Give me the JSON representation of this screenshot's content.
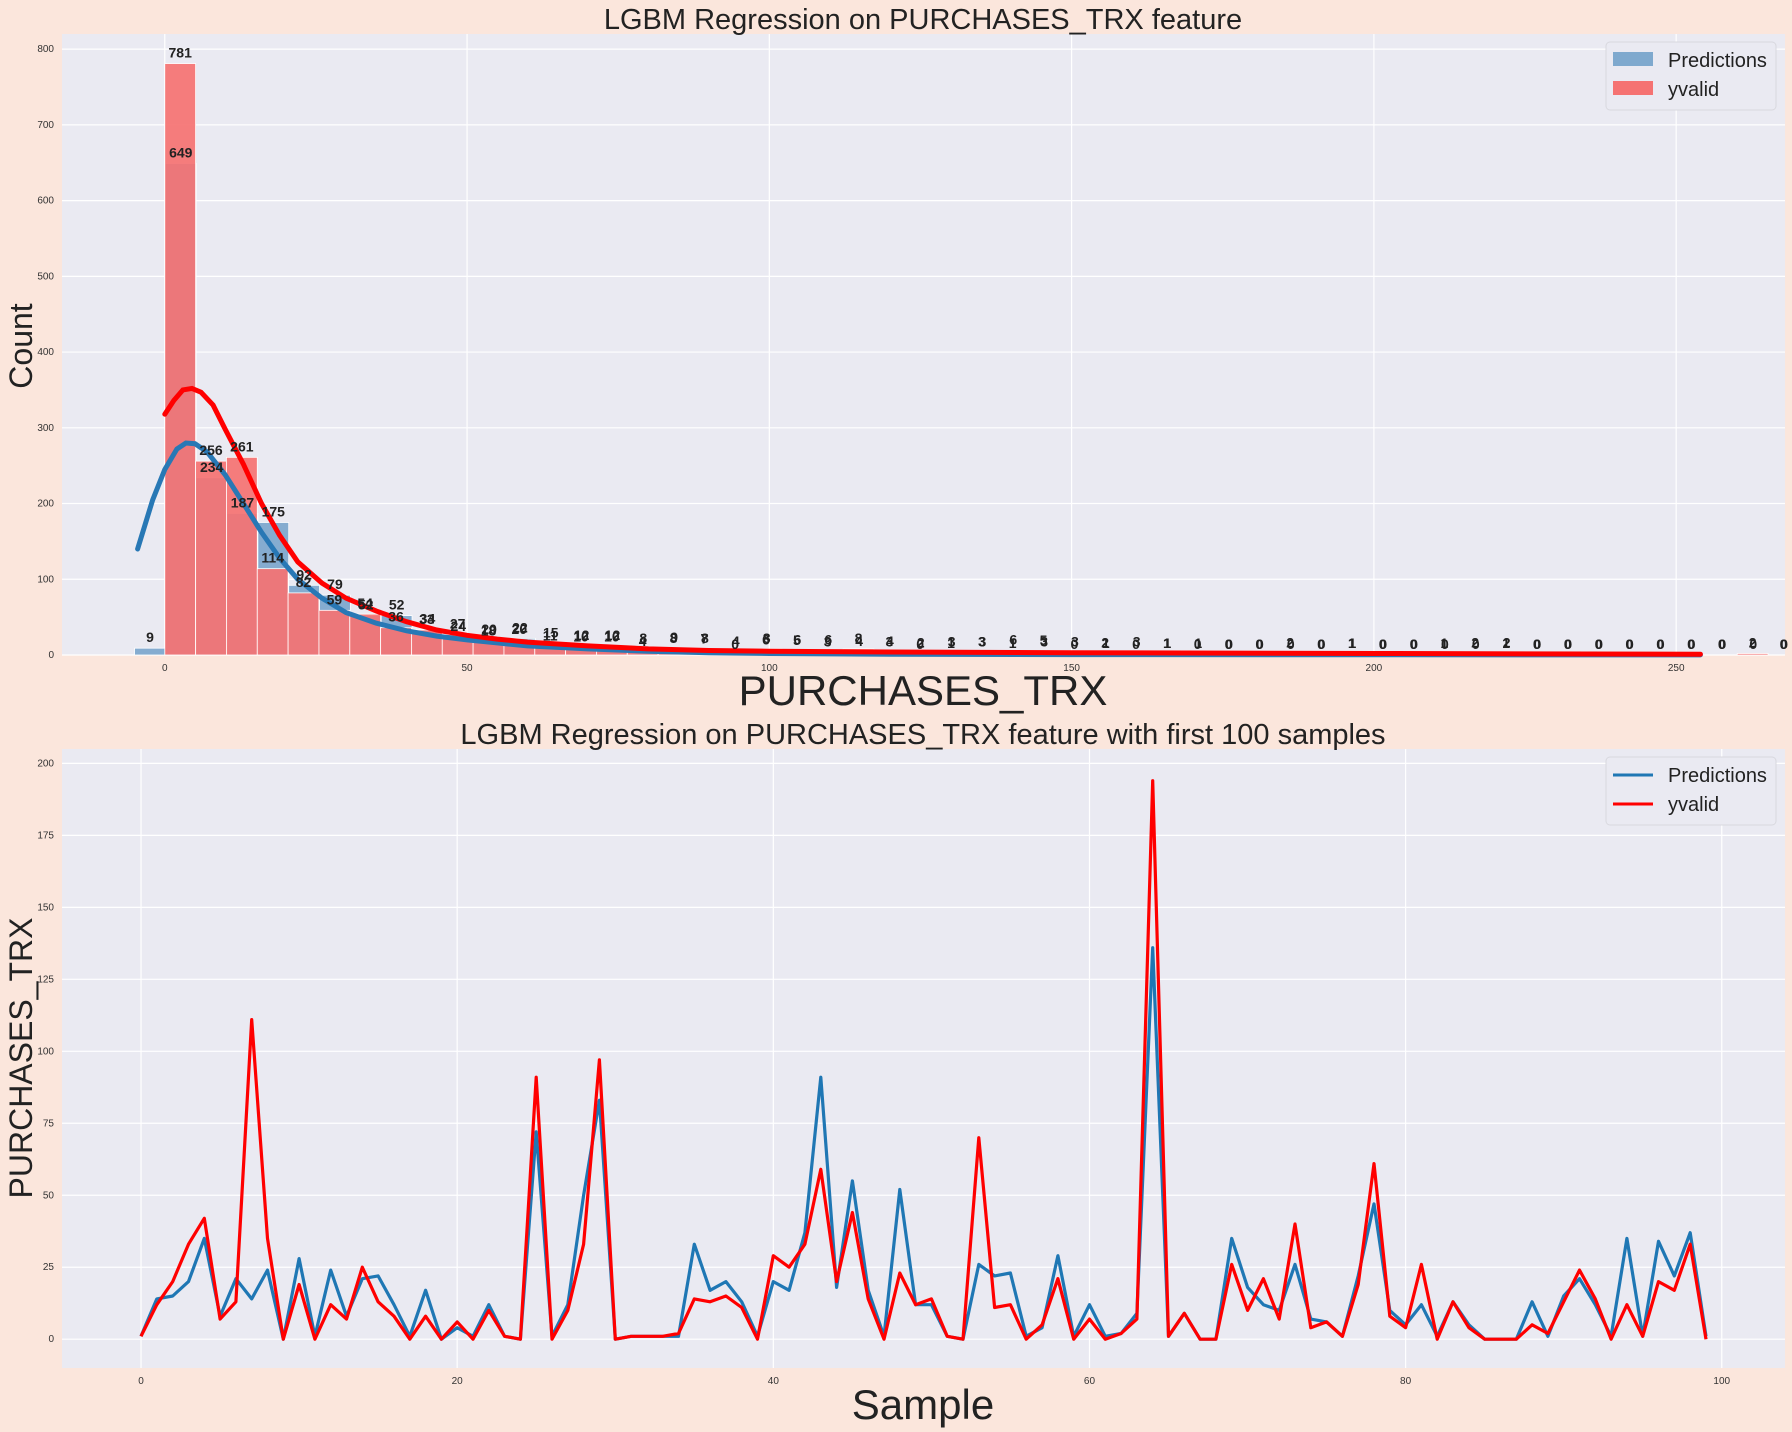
{
  "chart_data": [
    {
      "type": "histogram",
      "title": "LGBM Regression on PURCHASES_TRX feature",
      "xlabel": "PURCHASES_TRX",
      "ylabel": "Count",
      "xlim": [
        -17,
        268
      ],
      "ylim": [
        0,
        820
      ],
      "xticks": [
        "0",
        "50",
        "100",
        "150",
        "200",
        "250"
      ],
      "xtick_values": [
        0,
        50,
        100,
        150,
        200,
        250
      ],
      "yticks": [
        "0",
        "100",
        "200",
        "300",
        "400",
        "500",
        "600",
        "700",
        "800"
      ],
      "ytick_values": [
        0,
        100,
        200,
        300,
        400,
        500,
        600,
        700,
        800
      ],
      "legend": [
        "Predictions",
        "yvalid"
      ],
      "series": [
        {
          "name": "Predictions",
          "color": "#7fa9ce",
          "bin_start": -5,
          "bin_width": 5.1,
          "values": [
            9,
            649,
            234,
            187,
            175,
            92,
            79,
            52,
            52,
            34,
            24,
            20,
            22,
            15,
            12,
            12,
            8,
            9,
            8,
            4,
            8,
            6,
            6,
            4,
            4,
            2,
            3,
            3,
            6,
            3,
            3,
            1,
            3,
            1,
            1,
            0,
            0,
            0,
            0,
            1,
            0,
            0,
            0,
            0,
            2,
            0,
            0,
            0,
            0,
            0,
            0,
            0,
            0,
            0,
            0,
            0,
            2,
            0,
            0,
            0,
            0,
            0,
            0,
            0,
            0,
            0,
            0,
            1
          ]
        },
        {
          "name": "yvalid",
          "color": "#f57272",
          "bin_start": 0,
          "bin_width": 5.1,
          "values": [
            781,
            256,
            261,
            114,
            82,
            59,
            54,
            36,
            33,
            27,
            18,
            20,
            11,
            10,
            10,
            4,
            8,
            7,
            0,
            6,
            5,
            3,
            8,
            3,
            0,
            1,
            3,
            1,
            5,
            0,
            2,
            0,
            1,
            0,
            0,
            0,
            2,
            0,
            1,
            0,
            0,
            1,
            2,
            1,
            0,
            0,
            0,
            0,
            0,
            0,
            0,
            2,
            0,
            0,
            0
          ]
        }
      ],
      "kde": [
        {
          "name": "Predictions",
          "color": "#2878b5",
          "points": [
            [
              -4.5,
              140
            ],
            [
              -2,
              205
            ],
            [
              0,
              245
            ],
            [
              2,
              272
            ],
            [
              3.5,
              280
            ],
            [
              5,
              279
            ],
            [
              7,
              268
            ],
            [
              10,
              238
            ],
            [
              13,
              200
            ],
            [
              16,
              162
            ],
            [
              19,
              128
            ],
            [
              22,
              100
            ],
            [
              26,
              75
            ],
            [
              30,
              56
            ],
            [
              35,
              42
            ],
            [
              40,
              32
            ],
            [
              45,
              25
            ],
            [
              50,
              20
            ],
            [
              55,
              16
            ],
            [
              60,
              12
            ],
            [
              70,
              8
            ],
            [
              80,
              5
            ],
            [
              90,
              3
            ],
            [
              100,
              2
            ],
            [
              120,
              1
            ],
            [
              150,
              0.5
            ],
            [
              200,
              0.2
            ],
            [
              254,
              0.1
            ]
          ]
        },
        {
          "name": "yvalid",
          "color": "#ff0000",
          "points": [
            [
              0,
              318
            ],
            [
              1.5,
              336
            ],
            [
              3,
              350
            ],
            [
              4.5,
              352
            ],
            [
              6,
              347
            ],
            [
              8,
              330
            ],
            [
              10,
              298
            ],
            [
              13,
              252
            ],
            [
              16,
              200
            ],
            [
              19,
              158
            ],
            [
              22,
              123
            ],
            [
              26,
              95
            ],
            [
              30,
              75
            ],
            [
              35,
              58
            ],
            [
              40,
              44
            ],
            [
              45,
              33
            ],
            [
              50,
              26
            ],
            [
              55,
              21
            ],
            [
              60,
              17
            ],
            [
              70,
              12
            ],
            [
              80,
              8
            ],
            [
              90,
              6
            ],
            [
              100,
              5
            ],
            [
              120,
              4
            ],
            [
              150,
              3
            ],
            [
              200,
              2
            ],
            [
              254,
              1
            ]
          ]
        }
      ]
    },
    {
      "type": "line",
      "title": "LGBM Regression on PURCHASES_TRX feature with first 100 samples",
      "xlabel": "Sample",
      "ylabel": "PURCHASES_TRX",
      "xlim": [
        -5,
        104
      ],
      "ylim": [
        -10,
        205
      ],
      "xticks": [
        "0",
        "20",
        "40",
        "60",
        "80",
        "100"
      ],
      "xtick_values": [
        0,
        20,
        40,
        60,
        80,
        100
      ],
      "yticks": [
        "0",
        "25",
        "50",
        "75",
        "100",
        "125",
        "150",
        "175",
        "200"
      ],
      "ytick_values": [
        0,
        25,
        50,
        75,
        100,
        125,
        150,
        175,
        200
      ],
      "legend": [
        "Predictions",
        "yvalid"
      ],
      "series": [
        {
          "name": "Predictions",
          "color": "#1f77b4",
          "values": [
            1,
            14,
            15,
            20,
            35,
            8,
            21,
            14,
            24,
            0,
            28,
            1,
            24,
            8,
            21,
            22,
            12,
            1,
            17,
            0,
            4,
            1,
            12,
            1,
            0,
            72,
            1,
            12,
            50,
            83,
            0,
            1,
            1,
            1,
            1,
            33,
            17,
            20,
            13,
            1,
            20,
            17,
            37,
            91,
            18,
            55,
            17,
            1,
            52,
            12,
            12,
            1,
            0,
            26,
            22,
            23,
            1,
            4,
            29,
            1,
            12,
            1,
            2,
            9,
            136,
            1,
            9,
            0,
            0,
            35,
            18,
            12,
            10,
            26,
            7,
            6,
            1,
            22,
            47,
            10,
            5,
            12,
            1,
            13,
            5,
            0,
            0,
            0,
            13,
            1,
            15,
            21,
            12,
            1,
            35,
            1,
            34,
            22,
            37,
            1
          ]
        },
        {
          "name": "yvalid",
          "color": "#ff0000",
          "values": [
            1,
            12,
            20,
            33,
            42,
            7,
            13,
            111,
            35,
            0,
            19,
            0,
            12,
            7,
            25,
            13,
            8,
            0,
            8,
            0,
            6,
            0,
            10,
            1,
            0,
            91,
            0,
            10,
            33,
            97,
            0,
            1,
            1,
            1,
            2,
            14,
            13,
            15,
            11,
            0,
            29,
            25,
            33,
            59,
            20,
            44,
            14,
            0,
            23,
            12,
            14,
            1,
            0,
            70,
            11,
            12,
            0,
            5,
            21,
            0,
            7,
            0,
            2,
            7,
            194,
            1,
            9,
            0,
            0,
            26,
            10,
            21,
            7,
            40,
            4,
            6,
            1,
            19,
            61,
            8,
            4,
            26,
            0,
            13,
            4,
            0,
            0,
            0,
            5,
            2,
            13,
            24,
            14,
            0,
            12,
            1,
            20,
            17,
            33,
            0
          ]
        }
      ]
    }
  ]
}
